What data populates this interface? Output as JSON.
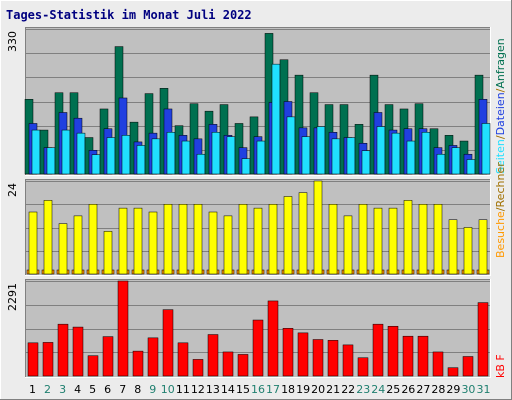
{
  "title": "Tages-Statistik im Monat Juli 2022",
  "colors": {
    "background": "#c0c0c0",
    "frame": "#ececec",
    "anfragen": "#007050",
    "dateien": "#2040e0",
    "seiten": "#20e0ff",
    "rechner": "#ffff00",
    "kb": "#ff0000",
    "grid": "#808080",
    "title": "#000080",
    "weekend_label": "#208070"
  },
  "legend": {
    "top": {
      "anfragen": "Anfragen",
      "sep1": "/",
      "dateien": "Dateien",
      "sep2": "/",
      "seiten": "Seiten"
    },
    "middle": {
      "rechner": "Rechner",
      "sep": "/",
      "besuche": "Besuche"
    },
    "bottom": {
      "kb": "kB F"
    }
  },
  "x_labels": [
    "1",
    "2",
    "3",
    "4",
    "5",
    "6",
    "7",
    "8",
    "9",
    "10",
    "11",
    "12",
    "13",
    "14",
    "15",
    "16",
    "17",
    "18",
    "19",
    "20",
    "21",
    "22",
    "23",
    "24",
    "25",
    "26",
    "27",
    "28",
    "29",
    "30",
    "31"
  ],
  "weekend_days": [
    2,
    3,
    9,
    10,
    16,
    17,
    23,
    24,
    30,
    31
  ],
  "chart_data": [
    {
      "type": "bar",
      "ymax_label": "330",
      "ylim": [
        0,
        330
      ],
      "series": [
        {
          "name": "Anfragen",
          "values": [
            170,
            100,
            185,
            185,
            83,
            148,
            290,
            118,
            183,
            195,
            110,
            160,
            143,
            158,
            115,
            130,
            320,
            260,
            225,
            185,
            158,
            158,
            113,
            225,
            158,
            148,
            160,
            103,
            88,
            75,
            225
          ]
        },
        {
          "name": "Dateien",
          "values": [
            115,
            60,
            140,
            127,
            54,
            103,
            173,
            73,
            93,
            148,
            88,
            80,
            113,
            88,
            60,
            85,
            163,
            165,
            105,
            105,
            95,
            83,
            70,
            140,
            100,
            103,
            103,
            60,
            65,
            45,
            170
          ]
        },
        {
          "name": "Seiten",
          "values": [
            100,
            60,
            100,
            93,
            44,
            83,
            88,
            65,
            80,
            95,
            75,
            45,
            95,
            85,
            35,
            75,
            250,
            130,
            85,
            108,
            80,
            83,
            53,
            108,
            93,
            75,
            95,
            45,
            60,
            33,
            115
          ]
        }
      ]
    },
    {
      "type": "bar",
      "ymax_label": "24",
      "ylim": [
        0,
        24
      ],
      "series": [
        {
          "name": "Rechner",
          "values": [
            16,
            19,
            13,
            15,
            18,
            11,
            17,
            17,
            16,
            18,
            18,
            18,
            16,
            15,
            18,
            17,
            18,
            20,
            21,
            24,
            18,
            15,
            18,
            17,
            17,
            19,
            18,
            18,
            14,
            12,
            14
          ]
        },
        {
          "name": "Besuche",
          "values": [
            1,
            1,
            1,
            1,
            1,
            1,
            1,
            1,
            1,
            1,
            1,
            1,
            1,
            1,
            1,
            1,
            1,
            1,
            1,
            1,
            1,
            1,
            1,
            1,
            1,
            1,
            1,
            1,
            1,
            1,
            1
          ]
        }
      ]
    },
    {
      "type": "bar",
      "ymax_label": "2291",
      "ylim": [
        0,
        2291
      ],
      "series": [
        {
          "name": "kB F",
          "values": [
            800,
            810,
            1250,
            1180,
            490,
            950,
            2291,
            600,
            920,
            1600,
            800,
            400,
            1000,
            580,
            520,
            1350,
            1810,
            1150,
            1040,
            880,
            860,
            750,
            440,
            1250,
            1200,
            960,
            960,
            580,
            200,
            470,
            1770
          ]
        }
      ]
    }
  ]
}
